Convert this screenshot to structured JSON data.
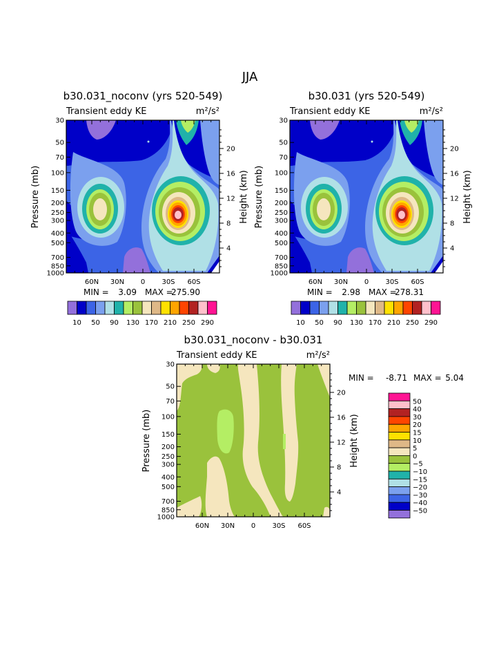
{
  "season": "JJA",
  "colors": {
    "purple": "#9370DB",
    "navy": "#0000C8",
    "royal": "#3C64E6",
    "corn": "#7BA0EE",
    "paleblue": "#B0E0E6",
    "teal": "#20B2AA",
    "lime": "#B4EE64",
    "green": "#9AC23C",
    "cream": "#F5E6BE",
    "tan": "#DEB887",
    "yellow": "#FFE100",
    "orange": "#FFA500",
    "redorange": "#FF4500",
    "darkred": "#B22222",
    "pink": "#FFC0CB",
    "magenta": "#FF1493"
  },
  "panels": [
    {
      "title": "b30.031_noconv (yrs 520-549)",
      "subtitle": "Transient eddy KE",
      "units": "m²/s²",
      "ylabel": "Pressure (mb)",
      "ylabel_right": "Height (km)",
      "min_label": "MIN =",
      "min_value": "3.09",
      "max_label": "MAX =",
      "max_value": "275.90"
    },
    {
      "title": "b30.031 (yrs 520-549)",
      "subtitle": "Transient eddy KE",
      "units": "m²/s²",
      "ylabel": "Pressure (mb)",
      "ylabel_right": "Height (km)",
      "min_label": "MIN =",
      "min_value": "2.98",
      "max_label": "MAX =",
      "max_value": "278.31"
    },
    {
      "title": "b30.031_noconv - b30.031",
      "subtitle": "Transient eddy KE",
      "units": "m²/s²",
      "ylabel": "Pressure (mb)",
      "ylabel_right": "Height (km)",
      "min_label": "MIN =",
      "min_value": "-8.71",
      "max_label": "MAX =",
      "max_value": "5.04"
    }
  ],
  "chart_data": [
    {
      "type": "heatmap",
      "title": "b30.031_noconv (yrs 520-549)",
      "subtitle": "Transient eddy KE",
      "x_ticks": [
        "60N",
        "30N",
        "0",
        "30S",
        "60S"
      ],
      "y_ticks": [
        "30",
        "50",
        "70",
        "100",
        "150",
        "200",
        "250",
        "300",
        "400",
        "500",
        "700",
        "850",
        "1000"
      ],
      "y_right_ticks": [
        "20",
        "16",
        "12",
        "8",
        "4"
      ],
      "ylim": [
        1000,
        30
      ],
      "min": 3.09,
      "max": 275.9,
      "levels": [
        10,
        30,
        50,
        70,
        90,
        110,
        130,
        150,
        170,
        190,
        210,
        230,
        250,
        270,
        290
      ],
      "level_labels": [
        "10",
        "50",
        "90",
        "130",
        "170",
        "210",
        "250",
        "290"
      ],
      "features": [
        {
          "lat": -45,
          "p": 250,
          "peak": 275.9
        },
        {
          "lat": 45,
          "p": 250,
          "peak": 160
        }
      ]
    },
    {
      "type": "heatmap",
      "title": "b30.031 (yrs 520-549)",
      "subtitle": "Transient eddy KE",
      "x_ticks": [
        "60N",
        "30N",
        "0",
        "30S",
        "60S"
      ],
      "y_ticks": [
        "30",
        "50",
        "70",
        "100",
        "150",
        "200",
        "250",
        "300",
        "400",
        "500",
        "700",
        "850",
        "1000"
      ],
      "y_right_ticks": [
        "20",
        "16",
        "12",
        "8",
        "4"
      ],
      "ylim": [
        1000,
        30
      ],
      "min": 2.98,
      "max": 278.31,
      "levels": [
        10,
        30,
        50,
        70,
        90,
        110,
        130,
        150,
        170,
        190,
        210,
        230,
        250,
        270,
        290
      ],
      "level_labels": [
        "10",
        "50",
        "90",
        "130",
        "170",
        "210",
        "250",
        "290"
      ],
      "features": [
        {
          "lat": -45,
          "p": 250,
          "peak": 278.31
        },
        {
          "lat": 45,
          "p": 250,
          "peak": 160
        }
      ]
    },
    {
      "type": "heatmap",
      "title": "b30.031_noconv - b30.031",
      "subtitle": "Transient eddy KE",
      "x_ticks": [
        "60N",
        "30N",
        "0",
        "30S",
        "60S"
      ],
      "y_ticks": [
        "30",
        "50",
        "70",
        "100",
        "150",
        "200",
        "250",
        "300",
        "400",
        "500",
        "700",
        "850",
        "1000"
      ],
      "y_right_ticks": [
        "20",
        "16",
        "12",
        "8",
        "4"
      ],
      "ylim": [
        1000,
        30
      ],
      "min": -8.71,
      "max": 5.04,
      "levels": [
        -50,
        -40,
        -30,
        -20,
        -15,
        -10,
        -5,
        0,
        5,
        10,
        15,
        20,
        30,
        40,
        50
      ],
      "level_labels": [
        "50",
        "40",
        "30",
        "20",
        "15",
        "10",
        "5",
        "0",
        "−5",
        "−10",
        "−15",
        "−20",
        "−30",
        "−40",
        "−50"
      ]
    }
  ]
}
